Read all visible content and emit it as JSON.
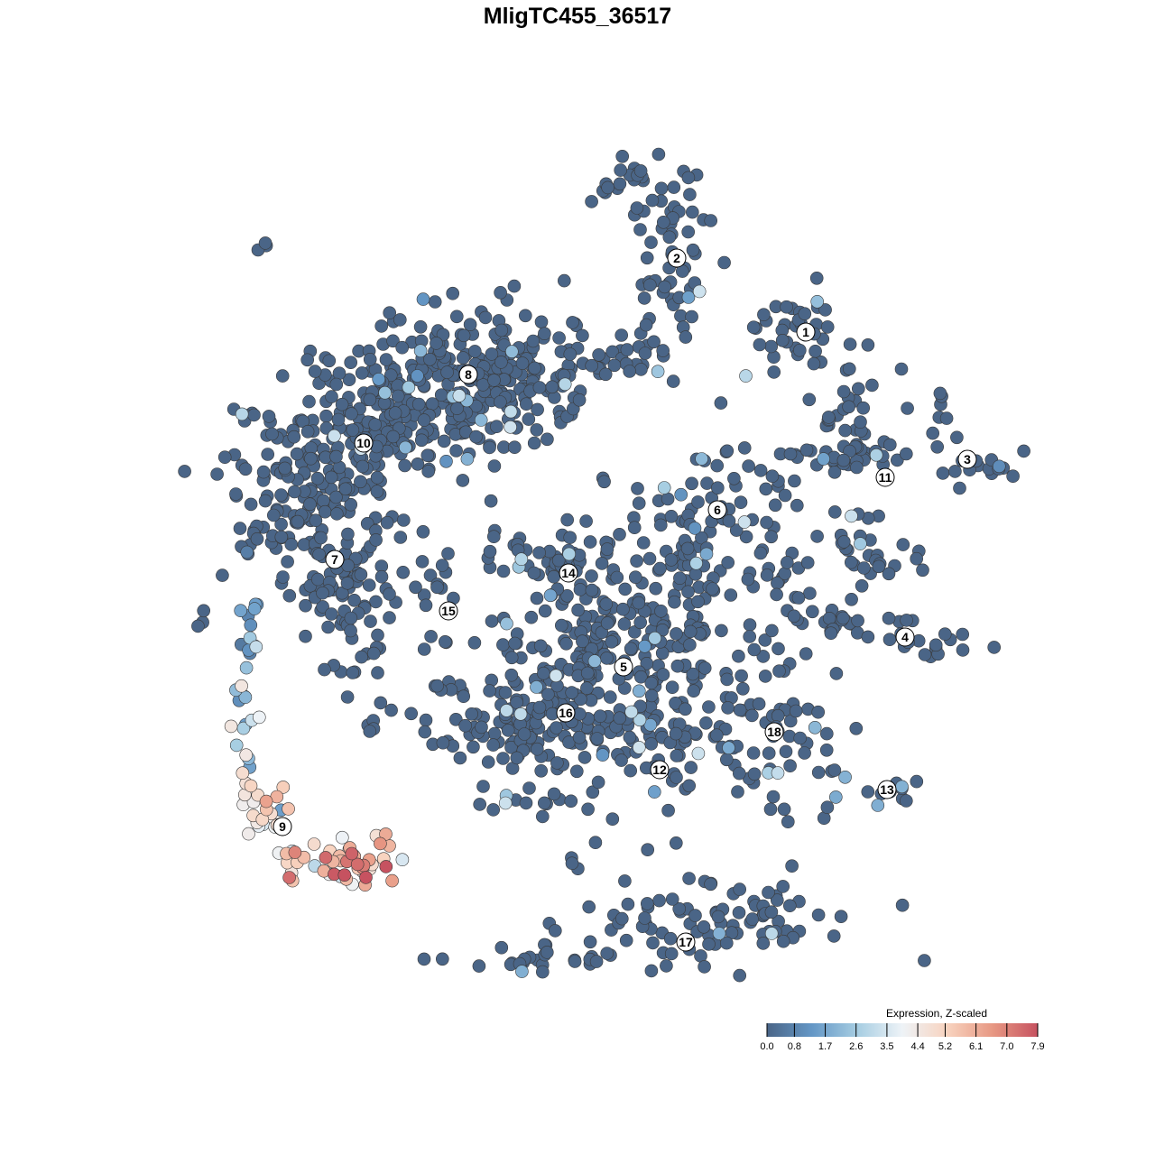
{
  "chart_data": {
    "type": "scatter",
    "title": "MligTC455_36517",
    "xlabel": "",
    "ylabel": "",
    "grid": false,
    "axes_visible": false,
    "legend": {
      "title": "Expression, Z-scaled",
      "placement": "bottom-right",
      "ticks": [
        "0.0",
        "0.8",
        "1.7",
        "2.6",
        "3.5",
        "4.4",
        "5.2",
        "6.1",
        "7.0",
        "7.9"
      ],
      "range": [
        0,
        7.9
      ],
      "colors": [
        "#4a6587",
        "#6497c6",
        "#a6cde2",
        "#eef3f7",
        "#f8d3bf",
        "#e79883",
        "#c65260"
      ]
    },
    "cluster_labels": [
      {
        "label": "1",
        "x": 89.3,
        "y": 91.2
      },
      {
        "label": "2",
        "x": 75.0,
        "y": 99.4
      },
      {
        "label": "3",
        "x": 107.2,
        "y": 77.1
      },
      {
        "label": "4",
        "x": 100.3,
        "y": 57.4
      },
      {
        "label": "5",
        "x": 69.1,
        "y": 54.1
      },
      {
        "label": "6",
        "x": 79.5,
        "y": 71.5
      },
      {
        "label": "7",
        "x": 37.1,
        "y": 66.0
      },
      {
        "label": "8",
        "x": 51.9,
        "y": 86.5
      },
      {
        "label": "9",
        "x": 31.3,
        "y": 36.4
      },
      {
        "label": "10",
        "x": 40.3,
        "y": 78.9
      },
      {
        "label": "11",
        "x": 98.1,
        "y": 75.1
      },
      {
        "label": "12",
        "x": 73.1,
        "y": 42.7
      },
      {
        "label": "13",
        "x": 98.3,
        "y": 40.5
      },
      {
        "label": "14",
        "x": 63.0,
        "y": 64.5
      },
      {
        "label": "15",
        "x": 49.7,
        "y": 60.3
      },
      {
        "label": "16",
        "x": 62.7,
        "y": 49.0
      },
      {
        "label": "17",
        "x": 76.0,
        "y": 23.6
      },
      {
        "label": "18",
        "x": 85.8,
        "y": 46.9
      }
    ],
    "cell_groups": [
      {
        "cluster": "8",
        "x": 53,
        "y": 86,
        "sx": 7,
        "sy": 4,
        "n": 260,
        "expression": 0.1
      },
      {
        "cluster": "8",
        "x": 46,
        "y": 82,
        "sx": 6,
        "sy": 4,
        "n": 120,
        "expression": 0.1
      },
      {
        "cluster": "10",
        "x": 37,
        "y": 78,
        "sx": 5,
        "sy": 4,
        "n": 100,
        "expression": 0.2
      },
      {
        "cluster": "7",
        "x": 33,
        "y": 70,
        "sx": 4,
        "sy": 5,
        "n": 120,
        "expression": 0.1
      },
      {
        "cluster": "7",
        "x": 39.5,
        "y": 60,
        "sx": 3,
        "sy": 4,
        "n": 60,
        "expression": 0.1
      },
      {
        "cluster": "9",
        "x": 27.5,
        "y": 58,
        "sx": 0.6,
        "sy": 4,
        "n": 15,
        "expression": 1.2
      },
      {
        "cluster": "9",
        "x": 27,
        "y": 48,
        "sx": 0.6,
        "sy": 4,
        "n": 15,
        "expression": 3.3
      },
      {
        "cluster": "9",
        "x": 29,
        "y": 38,
        "sx": 1.5,
        "sy": 2,
        "n": 20,
        "expression": 4.9
      },
      {
        "cluster": "9",
        "x": 36,
        "y": 33,
        "sx": 4,
        "sy": 1.5,
        "n": 30,
        "expression": 5.3
      },
      {
        "cluster": "9",
        "x": 40,
        "y": 32,
        "sx": 2,
        "sy": 1.5,
        "n": 20,
        "expression": 6.9
      },
      {
        "cluster": "2",
        "x": 70,
        "y": 108,
        "sx": 2.5,
        "sy": 1.5,
        "n": 20,
        "expression": 0.4
      },
      {
        "cluster": "2",
        "x": 74.5,
        "y": 103,
        "sx": 2,
        "sy": 3,
        "n": 30,
        "expression": 0.3
      },
      {
        "cluster": "2",
        "x": 74,
        "y": 96,
        "sx": 2,
        "sy": 3,
        "n": 25,
        "expression": 0.2
      },
      {
        "cluster": "2",
        "x": 70,
        "y": 89,
        "sx": 2.5,
        "sy": 2,
        "n": 20,
        "expression": 0.1
      },
      {
        "cluster": "2",
        "x": 67,
        "y": 86.8,
        "sx": 1.5,
        "sy": 0.5,
        "n": 5,
        "expression": 0
      },
      {
        "cluster": "1",
        "x": 88,
        "y": 92,
        "sx": 2,
        "sy": 2.5,
        "n": 35,
        "expression": 0.2
      },
      {
        "cluster": "11",
        "x": 94.5,
        "y": 81,
        "sx": 2.5,
        "sy": 4.5,
        "n": 50,
        "expression": 0.1
      },
      {
        "cluster": "11",
        "x": 91,
        "y": 77.5,
        "sx": 2.5,
        "sy": 1,
        "n": 15,
        "expression": 0.2
      },
      {
        "cluster": "11",
        "x": 95.5,
        "y": 68,
        "sx": 2.5,
        "sy": 2,
        "n": 20,
        "expression": 0
      },
      {
        "cluster": "11",
        "x": 98,
        "y": 65,
        "sx": 2,
        "sy": 0.5,
        "n": 8,
        "expression": 0
      },
      {
        "cluster": "3",
        "x": 104.5,
        "y": 81.5,
        "sx": 1,
        "sy": 1.5,
        "n": 8,
        "expression": 0
      },
      {
        "cluster": "3",
        "x": 108.5,
        "y": 76,
        "sx": 2,
        "sy": 1,
        "n": 15,
        "expression": 0
      },
      {
        "cluster": "4",
        "x": 88,
        "y": 64,
        "sx": 2,
        "sy": 2,
        "n": 15,
        "expression": 0
      },
      {
        "cluster": "4",
        "x": 95,
        "y": 59,
        "sx": 4,
        "sy": 1,
        "n": 25,
        "expression": 0
      },
      {
        "cluster": "4",
        "x": 103,
        "y": 56.5,
        "sx": 2.5,
        "sy": 0.7,
        "n": 15,
        "expression": 0.1
      },
      {
        "cluster": "6",
        "x": 78.5,
        "y": 71,
        "sx": 4.5,
        "sy": 4.5,
        "n": 80,
        "expression": 0
      },
      {
        "cluster": "6",
        "x": 77,
        "y": 63,
        "sx": 1.5,
        "sy": 2.5,
        "n": 15,
        "expression": 0.2
      },
      {
        "cluster": "5",
        "x": 69,
        "y": 55,
        "sx": 7,
        "sy": 6,
        "n": 250,
        "expression": 0.1
      },
      {
        "cluster": "14",
        "x": 58,
        "y": 66.5,
        "sx": 4,
        "sy": 1,
        "n": 25,
        "expression": 0
      },
      {
        "cluster": "14",
        "x": 63,
        "y": 64,
        "sx": 2.5,
        "sy": 3,
        "n": 30,
        "expression": 0
      },
      {
        "cluster": "15",
        "x": 48,
        "y": 62,
        "sx": 1.5,
        "sy": 4,
        "n": 15,
        "expression": 0
      },
      {
        "cluster": "16",
        "x": 56,
        "y": 47,
        "sx": 5,
        "sy": 3,
        "n": 80,
        "expression": 0
      },
      {
        "cluster": "16",
        "x": 62,
        "y": 49,
        "sx": 3,
        "sy": 3,
        "n": 40,
        "expression": 0.2
      },
      {
        "cluster": "12",
        "x": 72.5,
        "y": 45,
        "sx": 4,
        "sy": 4,
        "n": 50,
        "expression": 0
      },
      {
        "cluster": "18",
        "x": 86,
        "y": 46,
        "sx": 4,
        "sy": 5,
        "n": 60,
        "expression": 0.2
      },
      {
        "cluster": "13",
        "x": 99,
        "y": 40.5,
        "sx": 2,
        "sy": 0.7,
        "n": 10,
        "expression": 0
      },
      {
        "cluster": "17",
        "x": 80,
        "y": 26,
        "sx": 8,
        "sy": 2.5,
        "n": 90,
        "expression": 0.1
      },
      {
        "cluster": "17",
        "x": 62,
        "y": 21.5,
        "sx": 6,
        "sy": 0.7,
        "n": 25,
        "expression": 0.2
      },
      {
        "cluster": "",
        "x": 29.3,
        "y": 100.5,
        "sx": 0.5,
        "sy": 0.5,
        "n": 3,
        "expression": 0
      },
      {
        "cluster": "",
        "x": 22,
        "y": 59.2,
        "sx": 0.5,
        "sy": 0.5,
        "n": 3,
        "expression": 0
      },
      {
        "cluster": "",
        "x": 41,
        "y": 47.4,
        "sx": 0.6,
        "sy": 0.4,
        "n": 4,
        "expression": 0
      },
      {
        "cluster": "",
        "x": 50,
        "y": 52,
        "sx": 2,
        "sy": 0.5,
        "n": 5,
        "expression": 0
      },
      {
        "cluster": "",
        "x": 64,
        "y": 33,
        "sx": 1,
        "sy": 1,
        "n": 4,
        "expression": 0
      },
      {
        "cluster": "",
        "x": 59,
        "y": 39,
        "sx": 3,
        "sy": 1.5,
        "n": 10,
        "expression": 0
      }
    ],
    "xlim": [
      20,
      112
    ],
    "ylim": [
      19,
      110
    ]
  }
}
